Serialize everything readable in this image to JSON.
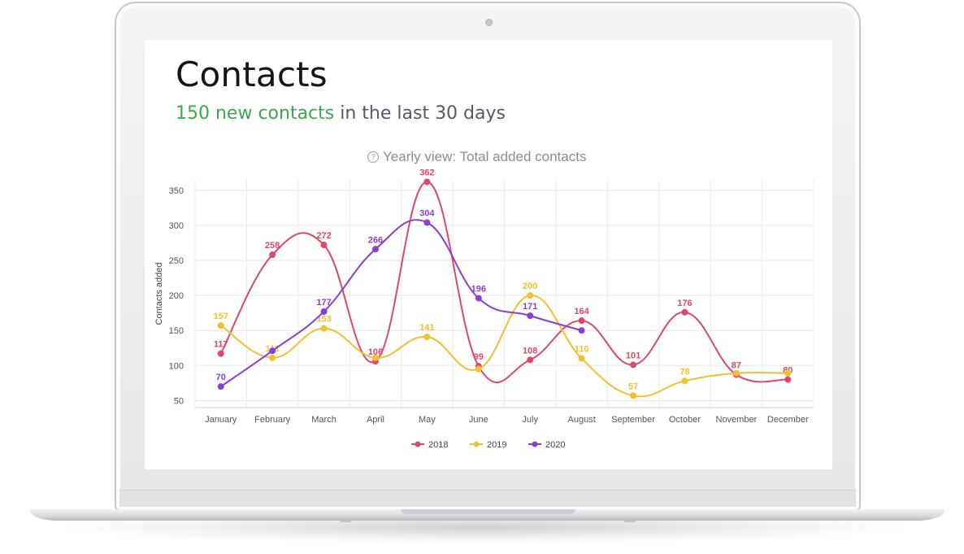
{
  "page": {
    "title": "Contacts",
    "subtitle_highlight": "150 new contacts",
    "subtitle_rest": " in the last 30 days",
    "chart_heading": "Yearly view: Total added contacts",
    "help_icon": "?"
  },
  "colors": {
    "highlight": "#3ba84a",
    "series_2018": "#e0476a",
    "series_2019": "#f2c12e",
    "series_2020": "#8a3fd0",
    "grid": "#e6e6e6"
  },
  "chart_data": {
    "type": "line",
    "title": "Yearly view: Total added contacts",
    "xlabel": "",
    "ylabel": "Contacts added",
    "categories": [
      "January",
      "February",
      "March",
      "April",
      "May",
      "June",
      "July",
      "August",
      "September",
      "October",
      "November",
      "December"
    ],
    "ylim": [
      40,
      365
    ],
    "yticks": [
      50,
      100,
      150,
      200,
      250,
      300,
      350
    ],
    "grid": true,
    "smooth": true,
    "legend_position": "bottom",
    "series": [
      {
        "name": "2018",
        "color": "#e0476a",
        "values": [
          117,
          258,
          272,
          106,
          362,
          99,
          108,
          164,
          101,
          176,
          87,
          80
        ]
      },
      {
        "name": "2019",
        "color": "#f2c12e",
        "values": [
          157,
          111,
          153,
          111,
          141,
          95,
          200,
          110,
          57,
          78,
          89,
          89
        ],
        "labels": [
          "157",
          "111",
          "153",
          "",
          "141",
          "",
          "200",
          "110",
          "57",
          "78",
          "",
          ""
        ]
      },
      {
        "name": "2020",
        "color": "#8a3fd0",
        "values": [
          70,
          121,
          177,
          266,
          304,
          196,
          171,
          150,
          null,
          null,
          null,
          null
        ],
        "labels": [
          "70",
          "",
          "177",
          "266",
          "304",
          "196",
          "171",
          "",
          "",
          "",
          "",
          ""
        ]
      }
    ]
  }
}
